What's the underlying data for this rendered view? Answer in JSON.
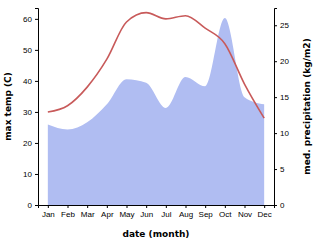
{
  "chart_data": {
    "type": "line",
    "categories": [
      "Jan",
      "Feb",
      "Mar",
      "Apr",
      "May",
      "Jun",
      "Jul",
      "Aug",
      "Sep",
      "Oct",
      "Nov",
      "Dec"
    ],
    "xlabel": "date (month)",
    "ylabel": "max temp (C)",
    "y2label": "med. precipitation (kg/m2)",
    "ylim": [
      0,
      63.5
    ],
    "yticks": [
      0,
      10,
      20,
      30,
      40,
      50,
      60
    ],
    "y2lim": [
      0,
      27.4
    ],
    "y2ticks": [
      0,
      5,
      10,
      15,
      20,
      25
    ],
    "series": [
      {
        "type": "area",
        "axis": "y2",
        "color": "#b0bdf2",
        "values": [
          11.2,
          10.5,
          11.5,
          14,
          17.5,
          17,
          13.5,
          17.8,
          16.5,
          26,
          15,
          14
        ]
      },
      {
        "type": "line",
        "color": "#c85a5a",
        "values": [
          30,
          32,
          38,
          47,
          59,
          62,
          60,
          61,
          57,
          52,
          39,
          28
        ]
      }
    ]
  }
}
